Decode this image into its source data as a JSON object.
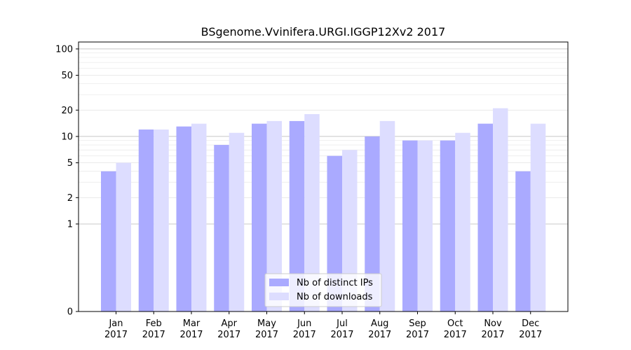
{
  "chart_data": {
    "type": "bar",
    "title": "BSgenome.Vvinifera.URGI.IGGP12Xv2 2017",
    "xlabel": "",
    "ylabel": "",
    "scale": "symlog",
    "ylim": [
      0,
      120
    ],
    "yticks": [
      0,
      1,
      2,
      5,
      10,
      20,
      50,
      100
    ],
    "ytick_labels": [
      "0",
      "1",
      "2",
      "5",
      "10",
      "20",
      "50",
      "100"
    ],
    "categories": [
      {
        "month": "Jan",
        "year": "2017"
      },
      {
        "month": "Feb",
        "year": "2017"
      },
      {
        "month": "Mar",
        "year": "2017"
      },
      {
        "month": "Apr",
        "year": "2017"
      },
      {
        "month": "May",
        "year": "2017"
      },
      {
        "month": "Jun",
        "year": "2017"
      },
      {
        "month": "Jul",
        "year": "2017"
      },
      {
        "month": "Aug",
        "year": "2017"
      },
      {
        "month": "Sep",
        "year": "2017"
      },
      {
        "month": "Oct",
        "year": "2017"
      },
      {
        "month": "Nov",
        "year": "2017"
      },
      {
        "month": "Dec",
        "year": "2017"
      }
    ],
    "series": [
      {
        "name": "Nb of distinct IPs",
        "color": "#aaaaff",
        "values": [
          4,
          12,
          13,
          8,
          14,
          15,
          6,
          10,
          9,
          9,
          14,
          4
        ]
      },
      {
        "name": "Nb of downloads",
        "color": "#ddddff",
        "values": [
          5,
          12,
          14,
          11,
          15,
          18,
          7,
          15,
          9,
          11,
          21,
          14
        ]
      }
    ],
    "grid": true,
    "legend_position": "bottom-center"
  }
}
